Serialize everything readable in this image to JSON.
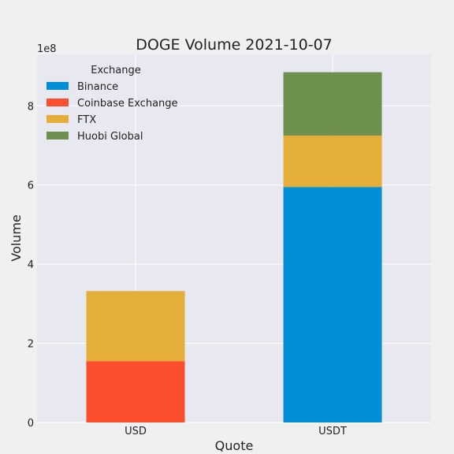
{
  "chart_data": {
    "type": "bar",
    "stacked": true,
    "title": "DOGE Volume 2021-10-07",
    "xlabel": "Quote",
    "ylabel": "Volume",
    "y_offset_label": "1e8",
    "categories": [
      "USD",
      "USDT"
    ],
    "ylim": [
      0,
      9.3
    ],
    "yticks": [
      0,
      2,
      4,
      6,
      8
    ],
    "grid": true,
    "legend_title": "Exchange",
    "legend_position": "top-left",
    "series": [
      {
        "name": "Binance",
        "color": "#008fd5",
        "values": [
          0,
          5.95
        ]
      },
      {
        "name": "Coinbase Exchange",
        "color": "#fc4f30",
        "values": [
          1.55,
          0
        ]
      },
      {
        "name": "FTX",
        "color": "#e5ae38",
        "values": [
          1.77,
          1.3
        ]
      },
      {
        "name": "Huobi Global",
        "color": "#6d904f",
        "values": [
          0,
          1.6
        ]
      }
    ]
  }
}
